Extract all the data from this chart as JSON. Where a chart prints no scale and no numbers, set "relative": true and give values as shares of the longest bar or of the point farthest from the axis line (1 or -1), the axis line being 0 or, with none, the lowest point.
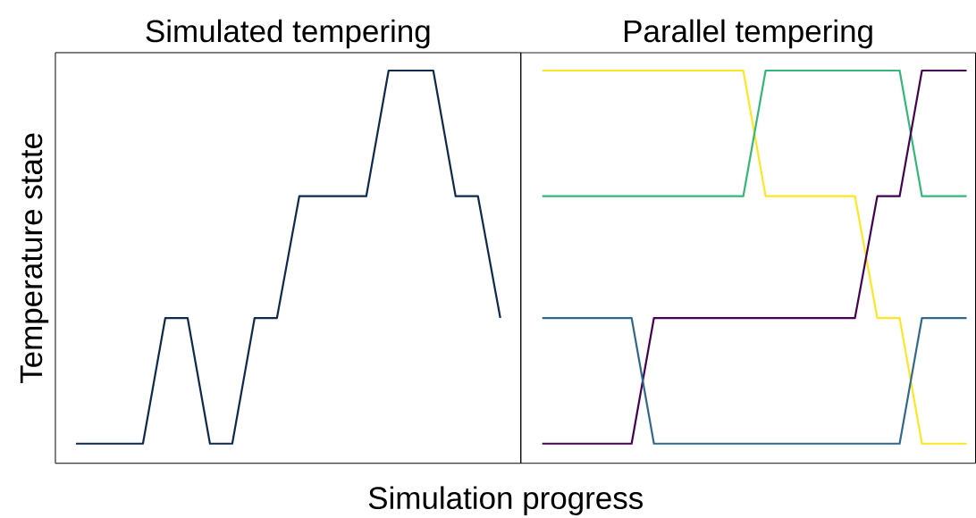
{
  "chart_data": [
    {
      "type": "line",
      "title": "Simulated tempering",
      "xlabel": "Simulation progress",
      "ylabel": "Temperature state",
      "relative": true,
      "categories": [
        null,
        null,
        null,
        null,
        null,
        null,
        null,
        null,
        null,
        null,
        null,
        null,
        null,
        null,
        null,
        null,
        null,
        null,
        null,
        null
      ],
      "series": [
        {
          "color": "#0d2a4e",
          "values": [
            0.05,
            0.05,
            0.05,
            0.05,
            0.37,
            0.37,
            0.05,
            0.05,
            0.37,
            0.37,
            0.68,
            0.68,
            0.68,
            0.68,
            1,
            1,
            1,
            0.68,
            0.68,
            0.37
          ]
        }
      ]
    },
    {
      "type": "line",
      "title": "Parallel tempering",
      "relative": true,
      "categories": [
        null,
        null,
        null,
        null,
        null,
        null,
        null,
        null,
        null,
        null,
        null,
        null,
        null,
        null,
        null,
        null,
        null,
        null,
        null,
        null
      ],
      "series": [
        {
          "color": "#fde725",
          "values": [
            1,
            1,
            1,
            1,
            1,
            1,
            1,
            1,
            1,
            1,
            0.68,
            0.68,
            0.68,
            0.68,
            0.68,
            0.37,
            0.37,
            0.05,
            0.05,
            0.05
          ]
        },
        {
          "color": "#35b779",
          "values": [
            0.68,
            0.68,
            0.68,
            0.68,
            0.68,
            0.68,
            0.68,
            0.68,
            0.68,
            0.68,
            1,
            1,
            1,
            1,
            1,
            1,
            1,
            0.68,
            0.68,
            0.68
          ]
        },
        {
          "color": "#440154",
          "values": [
            0.05,
            0.05,
            0.05,
            0.05,
            0.05,
            0.37,
            0.37,
            0.37,
            0.37,
            0.37,
            0.37,
            0.37,
            0.37,
            0.37,
            0.37,
            0.68,
            0.68,
            1,
            1,
            1
          ]
        },
        {
          "color": "#31688e",
          "values": [
            0.37,
            0.37,
            0.37,
            0.37,
            0.37,
            0.05,
            0.05,
            0.05,
            0.05,
            0.05,
            0.05,
            0.05,
            0.05,
            0.05,
            0.05,
            0.05,
            0.05,
            0.37,
            0.37,
            0.37
          ]
        }
      ]
    }
  ]
}
